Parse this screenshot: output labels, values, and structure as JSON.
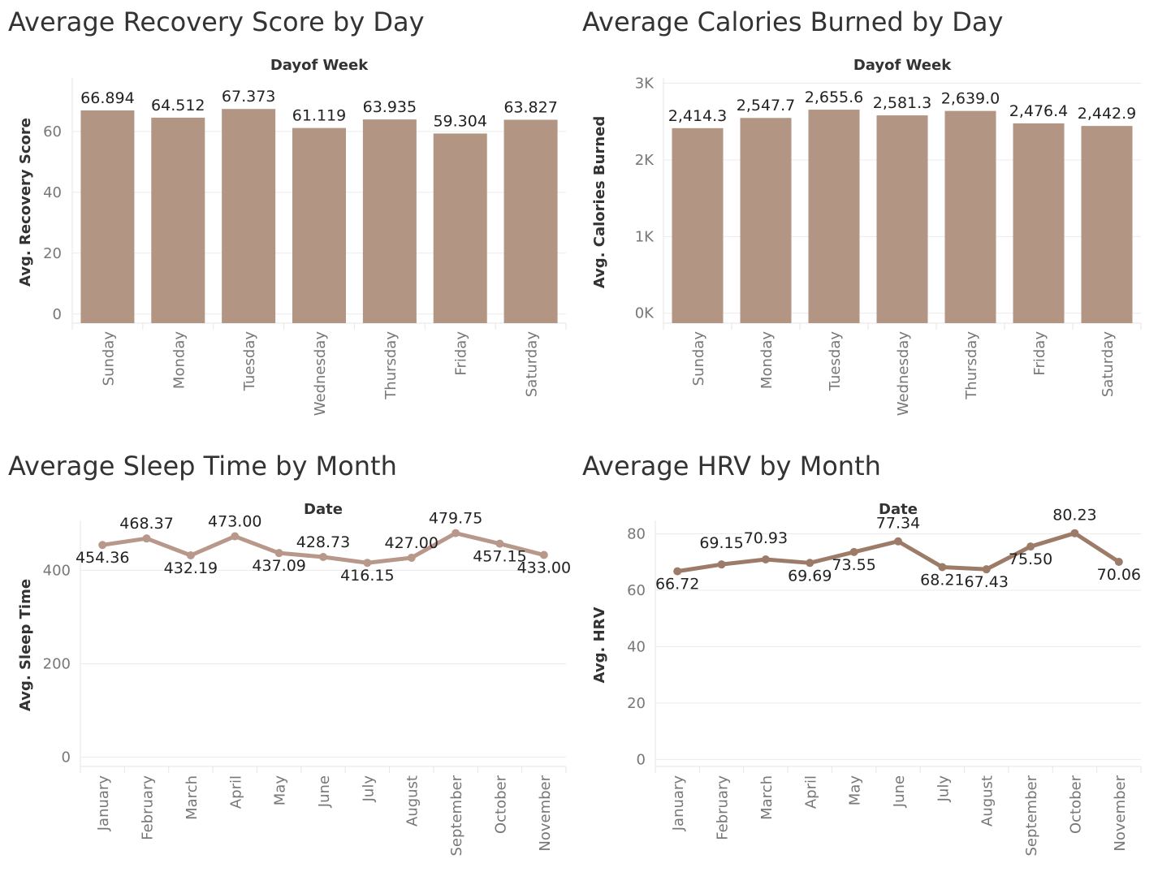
{
  "panels": {
    "p1": {
      "title": "Average Recovery Score by Day"
    },
    "p2": {
      "title": "Average Calories Burned by Day"
    },
    "p3": {
      "title": "Average Sleep Time by Month"
    },
    "p4": {
      "title": "Average HRV by Month"
    }
  },
  "colors": {
    "bar": "#b29683",
    "line_sleep": "#b8988a",
    "line_hrv": "#9c7b68",
    "grid": "#ebebeb"
  },
  "chart_data": [
    {
      "type": "bar",
      "title": "Average Recovery Score by Day",
      "header": "Dayof Week",
      "ylabel": "Avg. Recovery Score",
      "categories": [
        "Sunday",
        "Monday",
        "Tuesday",
        "Wednesday",
        "Thursday",
        "Friday",
        "Saturday"
      ],
      "values": [
        66.894,
        64.512,
        67.373,
        61.119,
        63.935,
        59.304,
        63.827
      ],
      "value_labels": [
        "66.894",
        "64.512",
        "67.373",
        "61.119",
        "63.935",
        "59.304",
        "63.827"
      ],
      "yticks": [
        0,
        20,
        40,
        60
      ],
      "ytick_labels": [
        "0",
        "20",
        "40",
        "60"
      ],
      "ylim": [
        -3,
        76.5
      ],
      "grid": true
    },
    {
      "type": "bar",
      "title": "Average Calories Burned by Day",
      "header": "Dayof Week",
      "ylabel": "Avg. Calories Burned",
      "categories": [
        "Sunday",
        "Monday",
        "Tuesday",
        "Wednesday",
        "Thursday",
        "Friday",
        "Saturday"
      ],
      "values": [
        2414.3,
        2547.7,
        2655.6,
        2581.3,
        2639.0,
        2476.4,
        2442.9
      ],
      "value_labels": [
        "2,414.3",
        "2,547.7",
        "2,655.6",
        "2,581.3",
        "2,639.0",
        "2,476.4",
        "2,442.9"
      ],
      "yticks": [
        0,
        1000,
        2000,
        3000
      ],
      "ytick_labels": [
        "0K",
        "1K",
        "2K",
        "3K"
      ],
      "ylim": [
        -130,
        3027
      ],
      "grid": true
    },
    {
      "type": "line",
      "title": "Average Sleep Time by Month",
      "header": "Date",
      "ylabel": "Avg. Sleep Time",
      "categories": [
        "January",
        "February",
        "March",
        "April",
        "May",
        "June",
        "July",
        "August",
        "September",
        "October",
        "November"
      ],
      "values": [
        454.36,
        468.37,
        432.19,
        473.0,
        437.09,
        428.73,
        416.15,
        427.0,
        479.75,
        457.15,
        433.0
      ],
      "value_labels": [
        "454.36",
        "468.37",
        "432.19",
        "473.00",
        "437.09",
        "428.73",
        "416.15",
        "427.00",
        "479.75",
        "457.15",
        "433.00"
      ],
      "yticks": [
        0,
        200,
        400
      ],
      "ytick_labels": [
        "0",
        "200",
        "400"
      ],
      "ylim": [
        -20,
        500
      ],
      "grid": true
    },
    {
      "type": "line",
      "title": "Average HRV by Month",
      "header": "Date",
      "ylabel": "Avg. HRV",
      "categories": [
        "January",
        "February",
        "March",
        "April",
        "May",
        "June",
        "July",
        "August",
        "September",
        "October",
        "November"
      ],
      "values": [
        66.72,
        69.15,
        70.93,
        69.69,
        73.55,
        77.34,
        68.21,
        67.43,
        75.5,
        80.23,
        70.06
      ],
      "value_labels": [
        "66.72",
        "69.15",
        "70.93",
        "69.69",
        "73.55",
        "77.34",
        "68.21",
        "67.43",
        "75.50",
        "80.23",
        "70.06"
      ],
      "yticks": [
        0,
        20,
        40,
        60,
        80
      ],
      "ytick_labels": [
        "0",
        "20",
        "40",
        "60",
        "80"
      ],
      "ylim": [
        -2.5,
        83.6
      ],
      "grid": true
    }
  ]
}
